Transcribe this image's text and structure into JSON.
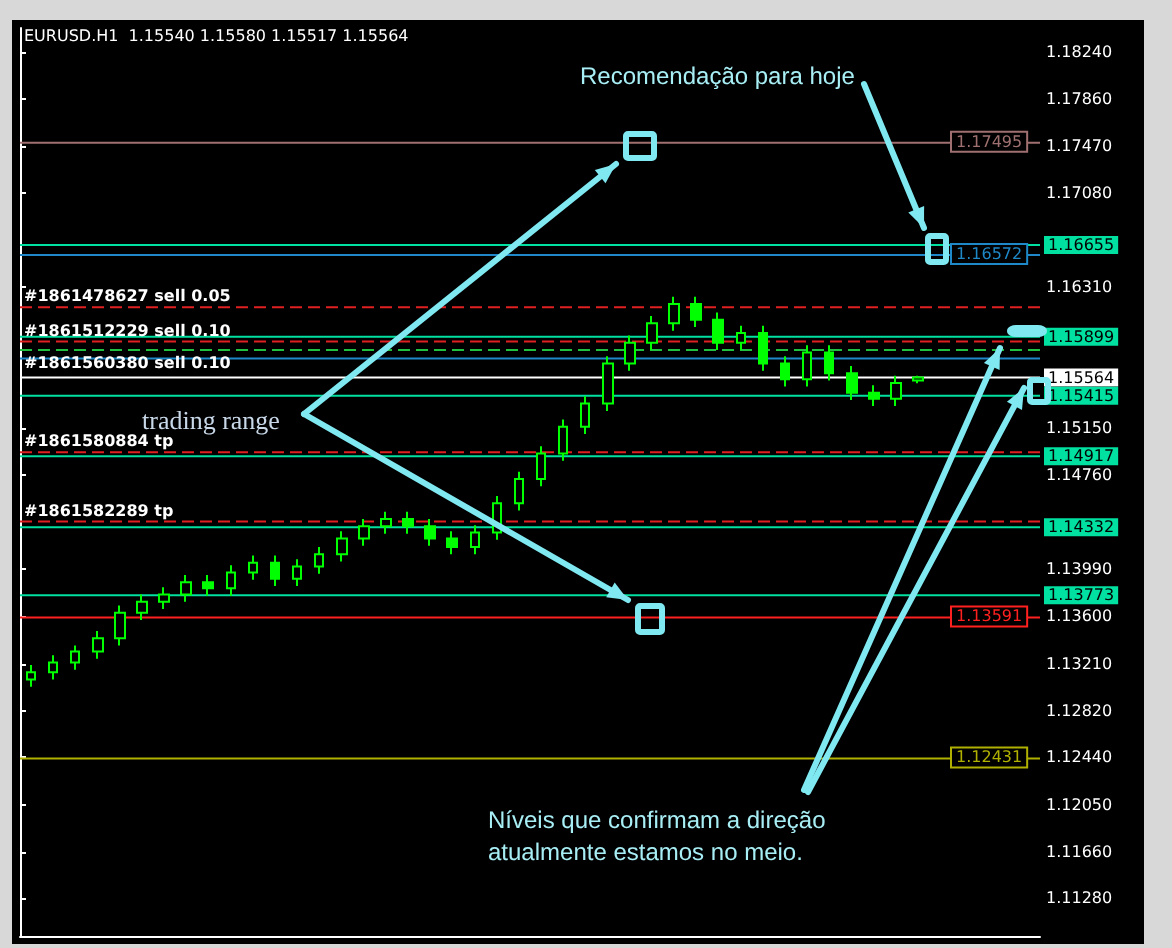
{
  "chart_data": {
    "type": "candlestick",
    "title": "EURUSD.H1  1.15540 1.15580 1.15517 1.15564",
    "color": "#00ff00",
    "categories": [
      null,
      null,
      null,
      null,
      null,
      null,
      null,
      null,
      null,
      null,
      null,
      null,
      null,
      null,
      null,
      null,
      null,
      null,
      null,
      null,
      null,
      null,
      null,
      null,
      null,
      null,
      null,
      null,
      null,
      null,
      null,
      null,
      null,
      null,
      null,
      null,
      null,
      null,
      null,
      null,
      null,
      null,
      null,
      null,
      null,
      null
    ],
    "ohlc": [
      [
        1.1308,
        1.132,
        1.1302,
        1.1314
      ],
      [
        1.1314,
        1.1328,
        1.1308,
        1.1322
      ],
      [
        1.1322,
        1.1336,
        1.1316,
        1.1331
      ],
      [
        1.1331,
        1.1348,
        1.1325,
        1.1342
      ],
      [
        1.1342,
        1.1369,
        1.1336,
        1.1363
      ],
      [
        1.1363,
        1.1378,
        1.1357,
        1.1372
      ],
      [
        1.1372,
        1.1384,
        1.1366,
        1.1378
      ],
      [
        1.1378,
        1.1394,
        1.1372,
        1.1388
      ],
      [
        1.1388,
        1.1394,
        1.1377,
        1.1383
      ],
      [
        1.1383,
        1.1402,
        1.1377,
        1.1396
      ],
      [
        1.1396,
        1.141,
        1.139,
        1.1404
      ],
      [
        1.1404,
        1.141,
        1.1385,
        1.1391
      ],
      [
        1.1391,
        1.1407,
        1.1385,
        1.1401
      ],
      [
        1.1401,
        1.1417,
        1.1395,
        1.1411
      ],
      [
        1.1411,
        1.143,
        1.1405,
        1.1424
      ],
      [
        1.1424,
        1.144,
        1.1418,
        1.1434
      ],
      [
        1.1434,
        1.1446,
        1.1428,
        1.144
      ],
      [
        1.144,
        1.1446,
        1.1428,
        1.1434
      ],
      [
        1.1434,
        1.144,
        1.1418,
        1.1424
      ],
      [
        1.1424,
        1.143,
        1.1411,
        1.1417
      ],
      [
        1.1417,
        1.1435,
        1.1411,
        1.1429
      ],
      [
        1.1429,
        1.1459,
        1.1423,
        1.1453
      ],
      [
        1.1453,
        1.1479,
        1.1447,
        1.1473
      ],
      [
        1.1473,
        1.15,
        1.1467,
        1.1494
      ],
      [
        1.1494,
        1.1522,
        1.1488,
        1.1516
      ],
      [
        1.1516,
        1.1541,
        1.151,
        1.1535
      ],
      [
        1.1535,
        1.1574,
        1.1529,
        1.1568
      ],
      [
        1.1568,
        1.1591,
        1.1562,
        1.1585
      ],
      [
        1.1585,
        1.1607,
        1.1579,
        1.1601
      ],
      [
        1.1601,
        1.1623,
        1.1595,
        1.1617
      ],
      [
        1.1617,
        1.1623,
        1.1598,
        1.1604
      ],
      [
        1.1604,
        1.161,
        1.1579,
        1.1585
      ],
      [
        1.1585,
        1.1599,
        1.1579,
        1.1593
      ],
      [
        1.1593,
        1.1599,
        1.1562,
        1.1568
      ],
      [
        1.1568,
        1.1574,
        1.1549,
        1.1555
      ],
      [
        1.1555,
        1.1583,
        1.1549,
        1.1577
      ],
      [
        1.1577,
        1.1583,
        1.1554,
        1.156
      ],
      [
        1.156,
        1.1566,
        1.1538,
        1.1544
      ],
      [
        1.1544,
        1.155,
        1.1533,
        1.1539
      ],
      [
        1.1539,
        1.1558,
        1.1533,
        1.1552
      ],
      [
        1.1554,
        1.1558,
        1.15517,
        1.15564
      ],
      null,
      null,
      null,
      null,
      null
    ],
    "ylim": [
      1.1097,
      1.1844
    ],
    "yticks": [
      {
        "value": 1.1128,
        "label": "1.11280"
      },
      {
        "value": 1.1166,
        "label": "1.11660"
      },
      {
        "value": 1.1205,
        "label": "1.12050"
      },
      {
        "value": 1.1244,
        "label": "1.12440"
      },
      {
        "value": 1.1282,
        "label": "1.12820"
      },
      {
        "value": 1.1321,
        "label": "1.13210"
      },
      {
        "value": 1.136,
        "label": "1.13600"
      },
      {
        "value": 1.1399,
        "label": "1.13990"
      },
      {
        "value": 1.1476,
        "label": "1.14760"
      },
      {
        "value": 1.1515,
        "label": "1.15150"
      },
      {
        "value": 1.1631,
        "label": "1.16310"
      },
      {
        "value": 1.1708,
        "label": "1.17080"
      },
      {
        "value": 1.1747,
        "label": "1.17470"
      },
      {
        "value": 1.1786,
        "label": "1.17860"
      },
      {
        "value": 1.1824,
        "label": "1.18240"
      }
    ],
    "ref_lines": [
      {
        "axis": "y",
        "value": 1.17495,
        "label": "1.17495",
        "color": "#a07070",
        "line_style": "solid"
      },
      {
        "axis": "y",
        "value": 1.16655,
        "label": "1.16655",
        "color": "#00e0a0",
        "line_style": "solid"
      },
      {
        "axis": "y",
        "value": 1.16572,
        "label": "1.16572",
        "color": "#1e88c8",
        "line_style": "solid"
      },
      {
        "axis": "y",
        "value": 1.16142,
        "label": "#1861478627 sell 0.05",
        "color": "#e02020",
        "line_style": "dashed"
      },
      {
        "axis": "y",
        "value": 1.15899,
        "label": "1.15899",
        "color": "#00e0a0",
        "line_style": "solid"
      },
      {
        "axis": "y",
        "value": 1.1586,
        "label": "#1861512229 sell 0.10",
        "color": "#e02020",
        "line_style": "dashed"
      },
      {
        "axis": "y",
        "value": 1.1579,
        "label": "#1861560380 sell 0.10",
        "color": "#20c040",
        "line_style": "dashed"
      },
      {
        "axis": "y",
        "value": 1.1572,
        "color": "#1e88c8",
        "line_style": "solid"
      },
      {
        "axis": "y",
        "value": 1.15564,
        "label": "1.15564",
        "color": "#ffffff",
        "line_style": "solid"
      },
      {
        "axis": "y",
        "value": 1.15415,
        "label": "1.15415",
        "color": "#00e0a0",
        "line_style": "solid"
      },
      {
        "axis": "y",
        "value": 1.1495,
        "label": "#1861580884 tp",
        "color": "#e02020",
        "line_style": "dashed"
      },
      {
        "axis": "y",
        "value": 1.14917,
        "label": "1.14917",
        "color": "#00e0a0",
        "line_style": "solid"
      },
      {
        "axis": "y",
        "value": 1.1438,
        "label": "#1861582289 tp",
        "color": "#e02020",
        "line_style": "dashed"
      },
      {
        "axis": "y",
        "value": 1.14332,
        "label": "1.14332",
        "color": "#00e0a0",
        "line_style": "solid"
      },
      {
        "axis": "y",
        "value": 1.13773,
        "label": "1.13773",
        "color": "#00e0a0",
        "line_style": "solid"
      },
      {
        "axis": "y",
        "value": 1.13591,
        "label": "1.13591",
        "color": "#ff2020",
        "line_style": "solid"
      },
      {
        "axis": "y",
        "value": 1.12431,
        "label": "1.12431",
        "color": "#b0b000",
        "line_style": "solid"
      }
    ],
    "annotations": [
      "Recomendação para hoje",
      "trading range",
      "Níveis que confirmam a direção atualmente estamos no meio."
    ],
    "tick_labels": "y"
  }
}
